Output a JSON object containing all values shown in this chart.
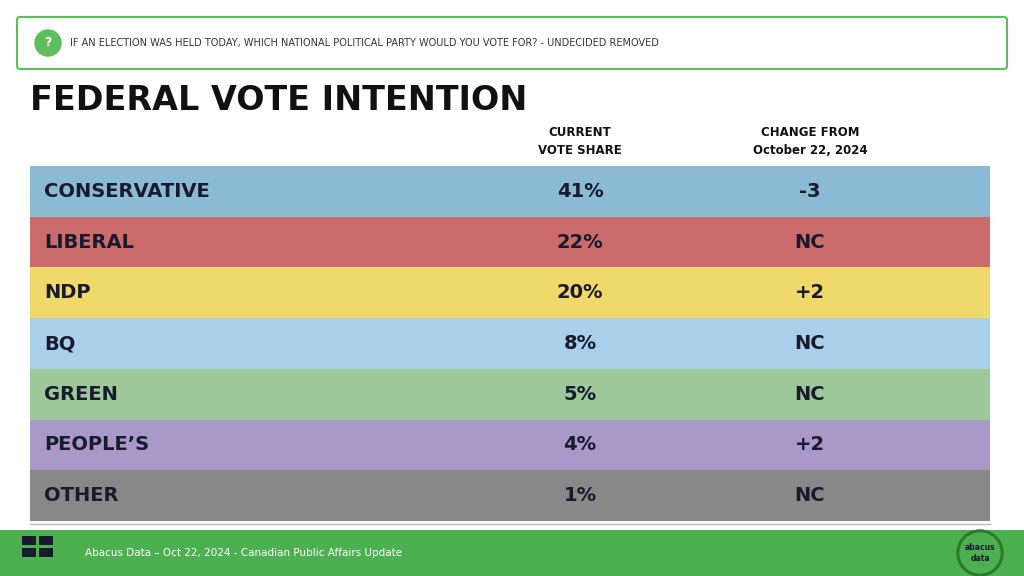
{
  "title": "FEDERAL VOTE INTENTION",
  "question_text": "IF AN ELECTION WAS HELD TODAY, WHICH NATIONAL POLITICAL PARTY WOULD YOU VOTE FOR? - UNDECIDED REMOVED",
  "col1_header": "CURRENT\nVOTE SHARE",
  "col2_header": "CHANGE FROM\nOctober 22, 2024",
  "parties": [
    "CONSERVATIVE",
    "LIBERAL",
    "NDP",
    "BQ",
    "GREEN",
    "PEOPLE’S",
    "OTHER"
  ],
  "vote_shares": [
    "41%",
    "22%",
    "20%",
    "8%",
    "5%",
    "4%",
    "1%"
  ],
  "changes": [
    "-3",
    "NC",
    "+2",
    "NC",
    "NC",
    "+2",
    "NC"
  ],
  "row_colors": [
    "#8BBAD4",
    "#CC6B6B",
    "#EFD96A",
    "#AACFEA",
    "#9DC99A",
    "#A899C8",
    "#888888"
  ],
  "text_color": "#1a1a2e",
  "bg_color": "#ffffff",
  "footer_bg": "#4CAF50",
  "footer_text": "Abacus Data – Oct 22, 2024 - Canadian Public Affairs Update",
  "question_border_color": "#5CBF5C",
  "question_icon_color": "#5CBF5C"
}
